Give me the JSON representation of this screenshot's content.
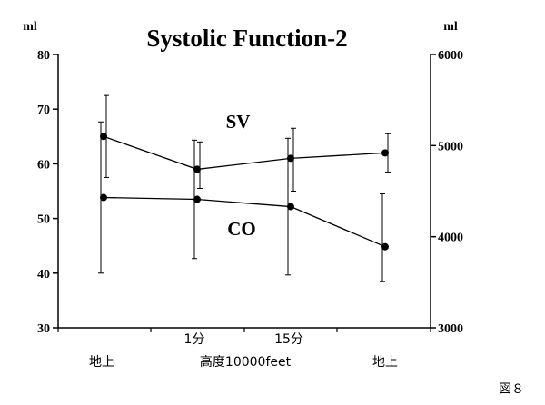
{
  "chart_data": {
    "type": "line",
    "title": "Systolic Function-2",
    "left_axis": {
      "unit": "ml",
      "range": [
        30,
        80
      ],
      "ticks": [
        30,
        40,
        50,
        60,
        70,
        80
      ]
    },
    "right_axis": {
      "unit": "ml",
      "range": [
        3000,
        6000
      ],
      "ticks": [
        3000,
        4000,
        5000,
        6000
      ]
    },
    "x_labels_top": [
      "",
      "1分",
      "15分",
      ""
    ],
    "x_labels_bottom": [
      "地上",
      "高度10000feet",
      "地上"
    ],
    "series": [
      {
        "name": "SV",
        "axis": "left",
        "values": [
          65,
          59,
          61,
          62
        ],
        "error_low": [
          57.5,
          55.5,
          55,
          58.5
        ],
        "error_high": [
          72.5,
          64,
          66.5,
          65.5
        ]
      },
      {
        "name": "CO",
        "axis": "right",
        "values": [
          4430,
          4410,
          4330,
          3890
        ],
        "error_low": [
          3600,
          3760,
          3580,
          3510
        ],
        "error_high": [
          5260,
          5060,
          5080,
          4470
        ]
      }
    ],
    "grid": false,
    "legend": "none"
  },
  "figure_label": "図８",
  "colors": {
    "ink": "#000000",
    "background": "#ffffff"
  }
}
